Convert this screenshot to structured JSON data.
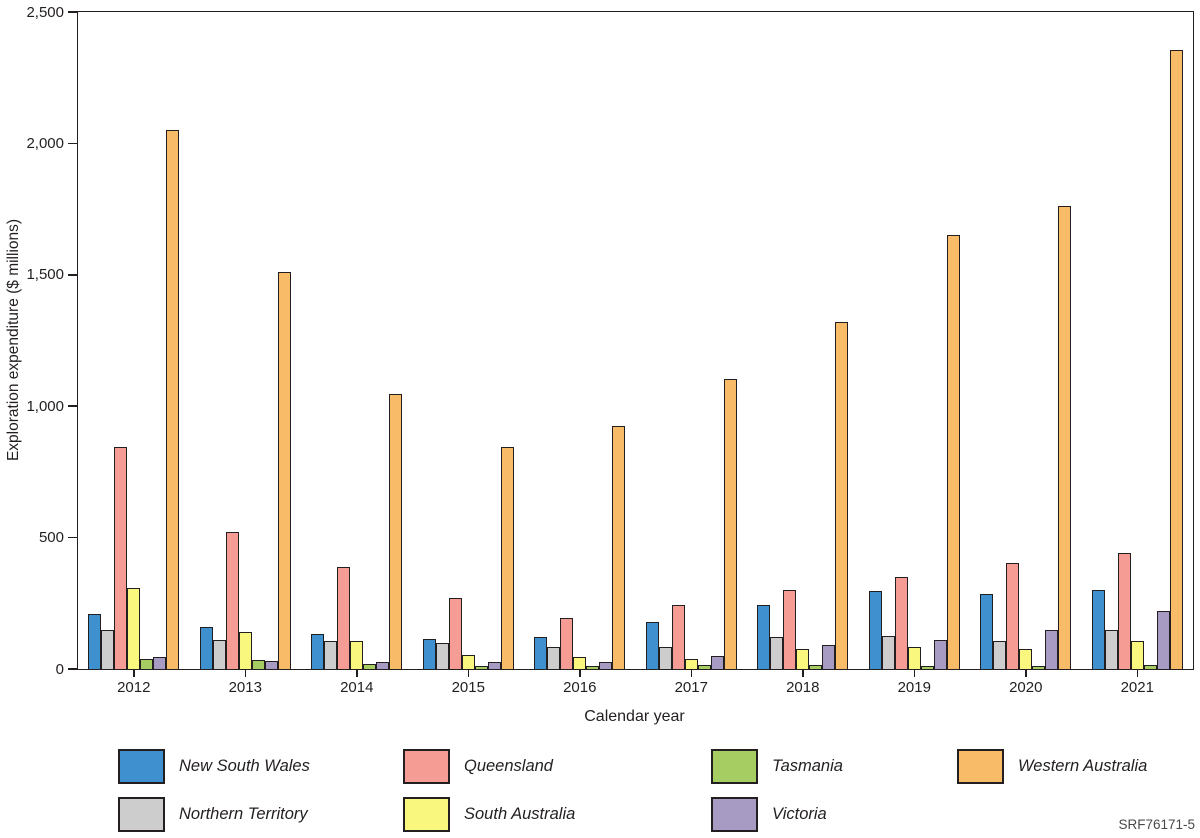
{
  "figure_code": "SRF76171-5",
  "chart_data": {
    "type": "bar",
    "title": "",
    "xlabel": "Calendar year",
    "ylabel": "Exploration expenditure ($ millions)",
    "categories": [
      "2012",
      "2013",
      "2014",
      "2015",
      "2016",
      "2017",
      "2018",
      "2019",
      "2020",
      "2021"
    ],
    "series": [
      {
        "name": "New South Wales",
        "color": "#3F90CE",
        "values": [
          210,
          160,
          135,
          115,
          120,
          180,
          245,
          295,
          285,
          300
        ]
      },
      {
        "name": "Northern Territory",
        "color": "#CDCDCD",
        "values": [
          150,
          110,
          105,
          100,
          85,
          85,
          120,
          125,
          105,
          150
        ]
      },
      {
        "name": "Queensland",
        "color": "#F59C95",
        "values": [
          845,
          520,
          390,
          270,
          195,
          245,
          300,
          350,
          405,
          440
        ]
      },
      {
        "name": "South Australia",
        "color": "#FAF77E",
        "values": [
          310,
          140,
          105,
          55,
          45,
          40,
          75,
          85,
          75,
          105
        ]
      },
      {
        "name": "Tasmania",
        "color": "#A5CD62",
        "values": [
          40,
          35,
          20,
          10,
          10,
          15,
          15,
          10,
          10,
          15
        ]
      },
      {
        "name": "Victoria",
        "color": "#A89BC3",
        "values": [
          45,
          30,
          25,
          25,
          25,
          50,
          90,
          110,
          150,
          220
        ]
      },
      {
        "name": "Western Australia",
        "color": "#F8BB68",
        "values": [
          2050,
          1510,
          1045,
          845,
          925,
          1105,
          1320,
          1650,
          1760,
          2355
        ]
      }
    ],
    "ylim": [
      0,
      2500
    ],
    "yticks": {
      "labels": [
        "0",
        "500",
        "1,000",
        "1,500",
        "2,000",
        "2,500"
      ],
      "values": [
        0,
        500,
        1000,
        1500,
        2000,
        2500
      ]
    },
    "grid": false,
    "legend_position": "bottom"
  },
  "legend": {
    "rows": [
      [
        "New South Wales",
        "Queensland",
        "Tasmania",
        "Western Australia"
      ],
      [
        "Northern Territory",
        "South Australia",
        "Victoria"
      ]
    ]
  }
}
